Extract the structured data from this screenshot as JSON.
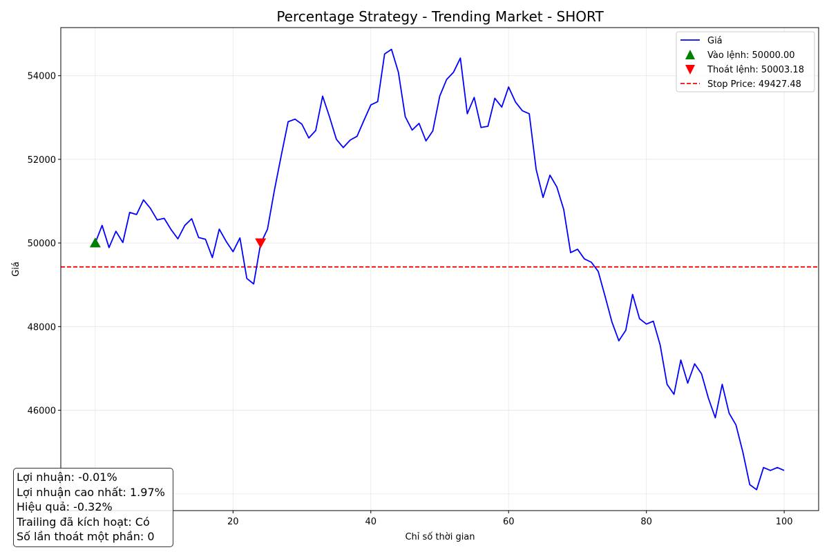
{
  "chart_data": {
    "type": "line",
    "title": "Percentage Strategy - Trending Market - SHORT",
    "xlabel": "Chỉ số thời gian",
    "ylabel": "Giá",
    "xlim": [
      -5,
      105
    ],
    "ylim": [
      43600,
      55150
    ],
    "xticks": [
      20,
      40,
      60,
      80,
      100
    ],
    "yticks": [
      46000,
      48000,
      50000,
      52000,
      54000
    ],
    "grid": true,
    "legend_position": "top-right",
    "series": [
      {
        "name": "Giá",
        "color": "#0000ff",
        "x": [
          0,
          1,
          2,
          3,
          4,
          5,
          6,
          7,
          8,
          9,
          10,
          11,
          12,
          13,
          14,
          15,
          16,
          17,
          18,
          19,
          20,
          21,
          22,
          23,
          24,
          25,
          26,
          27,
          28,
          29,
          30,
          31,
          32,
          33,
          34,
          35,
          36,
          37,
          38,
          39,
          40,
          41,
          42,
          43,
          44,
          45,
          46,
          47,
          48,
          49,
          50,
          51,
          52,
          53,
          54,
          55,
          56,
          57,
          58,
          59,
          60,
          61,
          62,
          63,
          64,
          65,
          66,
          67,
          68,
          69,
          70,
          71,
          72,
          73,
          74,
          75,
          76,
          77,
          78,
          79,
          80,
          81,
          82,
          83,
          84,
          85,
          86,
          87,
          88,
          89,
          90,
          91,
          92,
          93,
          94,
          95,
          96,
          97,
          98,
          99,
          100
        ],
        "y": [
          50000,
          50420,
          49890,
          50280,
          50010,
          50730,
          50680,
          51030,
          50830,
          50550,
          50590,
          50320,
          50100,
          50420,
          50580,
          50130,
          50090,
          49650,
          50330,
          50040,
          49790,
          50120,
          49150,
          49020,
          49980,
          50330,
          51260,
          52090,
          52900,
          52960,
          52840,
          52510,
          52690,
          53510,
          53020,
          52480,
          52280,
          52460,
          52550,
          52930,
          53300,
          53380,
          54520,
          54630,
          54080,
          53020,
          52700,
          52860,
          52440,
          52680,
          53510,
          53910,
          54080,
          54420,
          53090,
          53480,
          52760,
          52790,
          53460,
          53250,
          53730,
          53370,
          53160,
          53090,
          51760,
          51090,
          51620,
          51340,
          50800,
          49770,
          49850,
          49620,
          49540,
          49320,
          48730,
          48110,
          47660,
          47910,
          48770,
          48190,
          48060,
          48130,
          47560,
          46620,
          46380,
          47200,
          46650,
          47110,
          46870,
          46290,
          45820,
          46620,
          45930,
          45650,
          45000,
          44220,
          44100,
          44630,
          44560,
          44630,
          44560
        ]
      }
    ],
    "markers": [
      {
        "label": "Vào lệnh: 50000.00",
        "x": 0,
        "y": 50000,
        "shape": "triangle-up",
        "color": "#008000"
      },
      {
        "label": "Thoát lệnh: 50003.18",
        "x": 24,
        "y": 50003.18,
        "shape": "triangle-down",
        "color": "#ff0000"
      }
    ],
    "hlines": [
      {
        "label": "Stop Price: 49427.48",
        "y": 49427.48,
        "color": "#ff0000",
        "style": "dashed"
      }
    ],
    "annotation_lines": [
      "Lợi nhuận: -0.01%",
      "Lợi nhuận cao nhất: 1.97%",
      "Hiệu quả: -0.32%",
      "Trailing đã kích hoạt: Có",
      "Số lần thoát một phần: 0"
    ]
  }
}
